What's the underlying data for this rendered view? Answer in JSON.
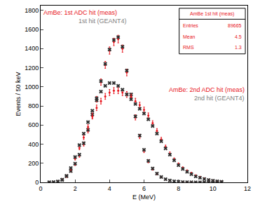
{
  "chart_data": {
    "type": "scatter",
    "x_label": "E (MeV)",
    "y_label": "Events / 50 keV",
    "xlim": [
      0,
      12
    ],
    "xticks": [
      0,
      2,
      4,
      6,
      8,
      10,
      12
    ],
    "ylim": [
      0,
      1850
    ],
    "yticks": [
      0,
      200,
      400,
      600,
      800,
      1000,
      1200,
      1400,
      1600,
      1800
    ],
    "grid": false,
    "x": [
      0.5,
      0.75,
      1,
      1.25,
      1.5,
      1.75,
      2,
      2.25,
      2.5,
      2.75,
      3,
      3.25,
      3.5,
      3.75,
      4,
      4.25,
      4.5,
      4.75,
      5,
      5.25,
      5.5,
      5.75,
      6,
      6.25,
      6.5,
      6.75,
      7,
      7.25,
      7.5,
      7.75,
      8,
      8.25,
      8.5,
      8.75,
      9,
      9.25,
      9.5,
      9.75,
      10,
      10.25,
      10.5
    ],
    "series": [
      {
        "name": "AmBe: 1st ADC hit (meas)",
        "color": "#e8141c",
        "marker": "circle",
        "values": [
          0,
          2,
          10,
          30,
          70,
          120,
          190,
          280,
          400,
          540,
          700,
          870,
          1050,
          1230,
          1380,
          1470,
          1500,
          1400,
          1150,
          900,
          680,
          480,
          330,
          220,
          140,
          90,
          55,
          32,
          18,
          10,
          5,
          3,
          2,
          1,
          0,
          0,
          0,
          0,
          0,
          0,
          0
        ],
        "errors": [
          0,
          1,
          3,
          5,
          8,
          11,
          14,
          17,
          20,
          23,
          27,
          30,
          33,
          36,
          38,
          39,
          40,
          38,
          35,
          31,
          27,
          23,
          19,
          15,
          12,
          10,
          8,
          6,
          4,
          3,
          2,
          2,
          1,
          1,
          0,
          0,
          0,
          0,
          0,
          0,
          0
        ]
      },
      {
        "name": "1st hit (GEANT4)",
        "color": "#303030",
        "marker": "x",
        "values": [
          0,
          1,
          8,
          28,
          68,
          118,
          195,
          290,
          410,
          550,
          710,
          880,
          1060,
          1240,
          1390,
          1490,
          1520,
          1420,
          1170,
          920,
          690,
          490,
          340,
          225,
          145,
          92,
          56,
          33,
          19,
          11,
          6,
          3,
          2,
          1,
          0,
          0,
          0,
          0,
          0,
          0,
          0
        ]
      },
      {
        "name": "AmBe: 2nd ADC hit (meas)",
        "color": "#e8141c",
        "marker": "circle",
        "values": [
          0,
          2,
          8,
          25,
          60,
          140,
          250,
          360,
          470,
          580,
          690,
          780,
          850,
          900,
          940,
          960,
          960,
          940,
          920,
          890,
          850,
          810,
          760,
          700,
          620,
          540,
          450,
          370,
          300,
          240,
          190,
          150,
          120,
          95,
          70,
          55,
          40,
          28,
          20,
          12,
          8
        ],
        "errors": [
          0,
          1,
          3,
          5,
          8,
          12,
          16,
          19,
          22,
          24,
          27,
          29,
          30,
          31,
          32,
          32,
          32,
          32,
          31,
          30,
          30,
          29,
          28,
          27,
          25,
          23,
          21,
          20,
          18,
          16,
          14,
          12,
          11,
          10,
          9,
          8,
          6,
          5,
          4,
          3,
          3
        ]
      },
      {
        "name": "2nd hit (GEANT4)",
        "color": "#303030",
        "marker": "x",
        "values": [
          0,
          2,
          8,
          25,
          65,
          150,
          265,
          390,
          510,
          630,
          750,
          860,
          950,
          1010,
          1040,
          1040,
          1010,
          970,
          920,
          870,
          820,
          770,
          720,
          660,
          590,
          510,
          430,
          355,
          290,
          230,
          180,
          140,
          110,
          85,
          62,
          48,
          35,
          25,
          18,
          11,
          7
        ]
      }
    ],
    "annotations": [
      {
        "text": "AmBe: 1st ADC hit (meas)",
        "color": "#e8141c",
        "x": 0.1,
        "y": 1780
      },
      {
        "text": "1st hit (GEANT4)",
        "color": "#808080",
        "x": 2.1,
        "y": 1690
      },
      {
        "text": "AmBe: 2nd ADC hit (meas)",
        "color": "#e8141c",
        "x": 11.9,
        "y": 970
      },
      {
        "text": "2nd hit (GEANT4)",
        "color": "#808080",
        "x": 11.9,
        "y": 880
      }
    ],
    "stats_box": {
      "title": "AmBe 1st hit (meas)",
      "rows": [
        {
          "label": "Entries",
          "value": 89665
        },
        {
          "label": "Mean",
          "value": 4.5
        },
        {
          "label": "RMS",
          "value": 1.3
        }
      ]
    }
  }
}
